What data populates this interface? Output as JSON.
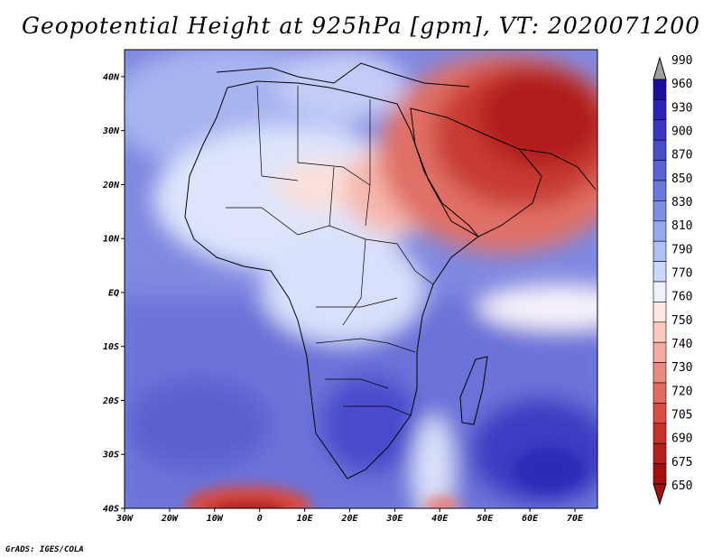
{
  "title": "Geopotential Height at 925hPa [gpm], VT: 2020071200",
  "credit": "GrADS: IGES/COLA",
  "axes": {
    "lon_labels": [
      "30W",
      "20W",
      "10W",
      "0",
      "10E",
      "20E",
      "30E",
      "40E",
      "50E",
      "60E",
      "70E"
    ],
    "lat_labels": [
      "40N",
      "30N",
      "20N",
      "10N",
      "EQ",
      "10S",
      "20S",
      "30S",
      "40S"
    ],
    "lon_range": [
      -30,
      75
    ],
    "lat_range": [
      -40,
      45
    ]
  },
  "colorbar": {
    "labels": [
      "990",
      "960",
      "930",
      "900",
      "870",
      "850",
      "830",
      "810",
      "790",
      "770",
      "760",
      "750",
      "740",
      "730",
      "720",
      "705",
      "690",
      "675",
      "650"
    ],
    "colors": [
      "#1a0f9c",
      "#2a22b4",
      "#3a36c2",
      "#4a4ccc",
      "#5a62d6",
      "#6a78dc",
      "#7e90e4",
      "#96a8ec",
      "#b0c0f4",
      "#ccd8fa",
      "#eef2ff",
      "#fde8e2",
      "#f9cabf",
      "#f4aaa0",
      "#ec8a80",
      "#e26a60",
      "#d84c44",
      "#c8302c",
      "#b41e1e",
      "#a01010"
    ],
    "over_color": "#a0a0a0"
  }
}
